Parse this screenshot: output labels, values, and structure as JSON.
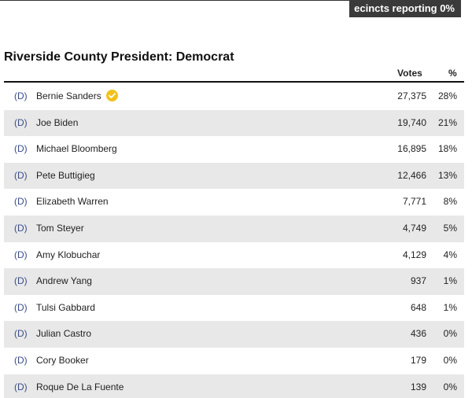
{
  "header": {
    "reporting_text": "ecincts reporting 0%"
  },
  "race": {
    "title": "Riverside County President: Democrat"
  },
  "columns": {
    "votes": "Votes",
    "pct": "%"
  },
  "colors": {
    "winner_check": "#f2c11a",
    "party_label": "#3b4c8a",
    "shaded_row": "#e8e8e8"
  },
  "candidates": [
    {
      "party": "(D)",
      "name": "Bernie Sanders",
      "votes": "27,375",
      "pct": "28%",
      "winner": true
    },
    {
      "party": "(D)",
      "name": "Joe Biden",
      "votes": "19,740",
      "pct": "21%",
      "winner": false
    },
    {
      "party": "(D)",
      "name": "Michael Bloomberg",
      "votes": "16,895",
      "pct": "18%",
      "winner": false
    },
    {
      "party": "(D)",
      "name": "Pete Buttigieg",
      "votes": "12,466",
      "pct": "13%",
      "winner": false
    },
    {
      "party": "(D)",
      "name": "Elizabeth Warren",
      "votes": "7,771",
      "pct": "8%",
      "winner": false
    },
    {
      "party": "(D)",
      "name": "Tom Steyer",
      "votes": "4,749",
      "pct": "5%",
      "winner": false
    },
    {
      "party": "(D)",
      "name": "Amy Klobuchar",
      "votes": "4,129",
      "pct": "4%",
      "winner": false
    },
    {
      "party": "(D)",
      "name": "Andrew Yang",
      "votes": "937",
      "pct": "1%",
      "winner": false
    },
    {
      "party": "(D)",
      "name": "Tulsi Gabbard",
      "votes": "648",
      "pct": "1%",
      "winner": false
    },
    {
      "party": "(D)",
      "name": "Julian Castro",
      "votes": "436",
      "pct": "0%",
      "winner": false
    },
    {
      "party": "(D)",
      "name": "Cory Booker",
      "votes": "179",
      "pct": "0%",
      "winner": false
    },
    {
      "party": "(D)",
      "name": "Roque De La Fuente",
      "votes": "139",
      "pct": "0%",
      "winner": false
    }
  ]
}
